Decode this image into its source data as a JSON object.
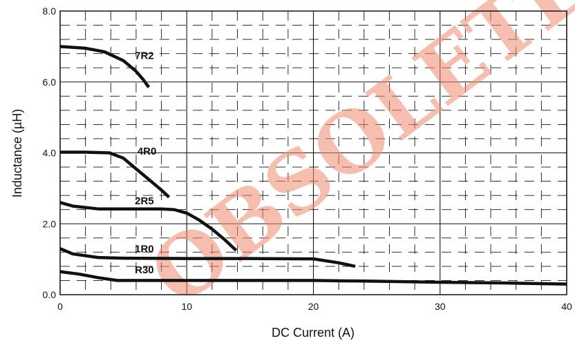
{
  "chart_data": {
    "type": "line",
    "title": "",
    "xlabel": "DC Current (A)",
    "ylabel": "Inductance (µH)",
    "xlim": [
      0,
      40
    ],
    "ylim": [
      0,
      8
    ],
    "xticks": [
      0,
      10,
      20,
      30,
      40
    ],
    "xtick_labels": [
      "0",
      "10",
      "20",
      "30",
      "40"
    ],
    "yticks": [
      0,
      2,
      4,
      6,
      8
    ],
    "ytick_labels": [
      "0.0",
      "2.0",
      "4.0",
      "6.0",
      "8.0"
    ],
    "grid": "major solid, minor dashed",
    "series": [
      {
        "name": "7R2",
        "x": [
          0,
          2,
          3.5,
          5,
          6,
          6.6,
          7.0
        ],
        "y": [
          7.0,
          6.95,
          6.85,
          6.6,
          6.3,
          6.05,
          5.85
        ]
      },
      {
        "name": "4R0",
        "x": [
          0,
          2,
          3.9,
          5,
          6,
          7,
          8,
          8.6
        ],
        "y": [
          4.02,
          4.02,
          4.0,
          3.85,
          3.55,
          3.25,
          2.95,
          2.75
        ]
      },
      {
        "name": "2R5",
        "x": [
          0,
          1,
          3,
          5,
          8,
          9,
          10,
          11,
          12,
          13,
          13.9
        ],
        "y": [
          2.6,
          2.5,
          2.42,
          2.42,
          2.42,
          2.4,
          2.3,
          2.1,
          1.85,
          1.55,
          1.25
        ]
      },
      {
        "name": "1R0",
        "x": [
          0,
          1,
          3,
          5,
          10,
          15,
          20,
          22,
          23.3
        ],
        "y": [
          1.3,
          1.15,
          1.05,
          1.03,
          1.02,
          1.02,
          1.01,
          0.9,
          0.8
        ]
      },
      {
        "name": "R30",
        "x": [
          0,
          1.5,
          3,
          4.5,
          10,
          20,
          25,
          30,
          35,
          40
        ],
        "y": [
          0.65,
          0.58,
          0.48,
          0.4,
          0.4,
          0.4,
          0.38,
          0.35,
          0.33,
          0.3
        ]
      }
    ],
    "watermark": {
      "text": "OBSOLETE",
      "color": "#f08a6e"
    }
  }
}
